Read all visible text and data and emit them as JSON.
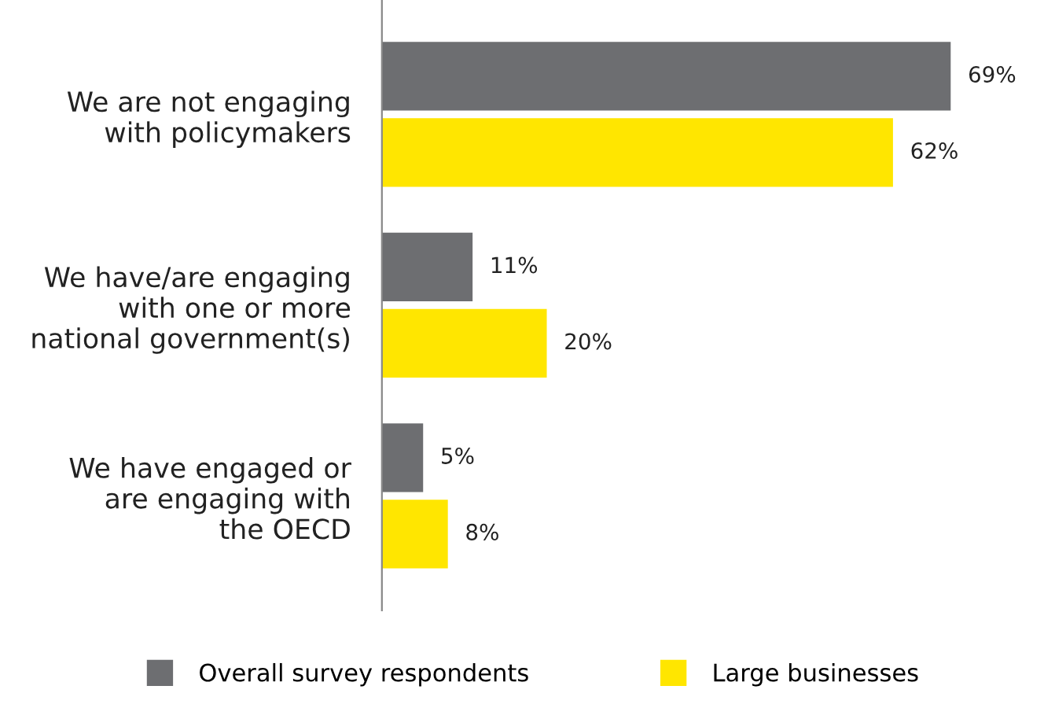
{
  "chart_data": {
    "type": "bar",
    "orientation": "horizontal",
    "categories": [
      "We are not engaging\nwith policymakers",
      "We have/are engaging\nwith one or more\nnational government(s)",
      "We have engaged or\nare engaging with\nthe OECD"
    ],
    "series": [
      {
        "name": "Overall survey respondents",
        "color": "#6d6e71",
        "values": [
          69,
          11,
          5
        ],
        "value_labels": [
          "69%",
          "11%",
          "5%"
        ]
      },
      {
        "name": "Large businesses",
        "color": "#ffe600",
        "values": [
          62,
          20,
          8
        ],
        "value_labels": [
          "62%",
          "20%",
          "8%"
        ]
      }
    ],
    "legend": "bottom",
    "tick_labels": "y",
    "grid": false
  }
}
